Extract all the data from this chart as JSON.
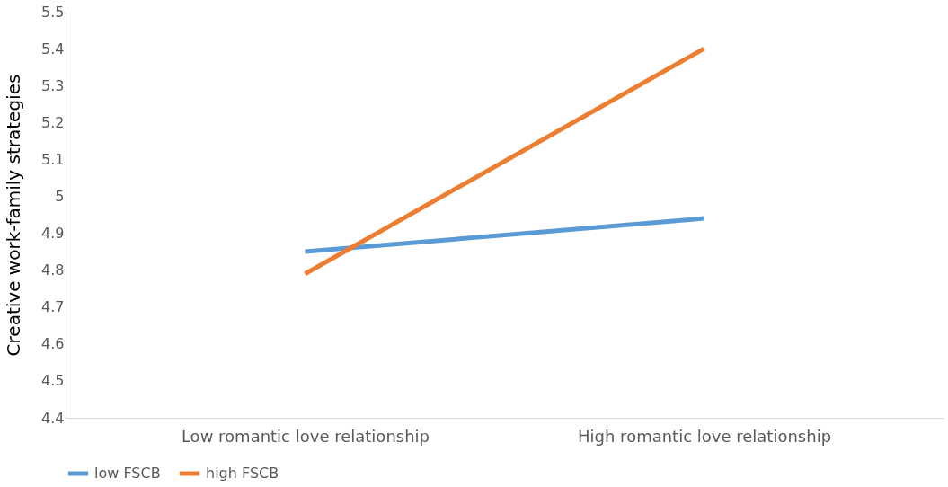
{
  "chart_data": {
    "type": "line",
    "ylabel": "Creative work-family strategies",
    "categories": [
      "Low romantic love relationship",
      "High romantic love relationship"
    ],
    "series": [
      {
        "name": "low FSCB",
        "color": "#5b9bd5",
        "values": [
          4.85,
          4.94
        ]
      },
      {
        "name": "high FSCB",
        "color": "#ed7d31",
        "values": [
          4.79,
          5.4
        ]
      }
    ],
    "ylim": [
      4.4,
      5.5
    ],
    "yticks": [
      4.4,
      4.5,
      4.6,
      4.7,
      4.8,
      4.9,
      5,
      5.1,
      5.2,
      5.3,
      5.4,
      5.5
    ],
    "grid": false,
    "legend": "bottom",
    "marker": "none",
    "line_style": "solid"
  }
}
